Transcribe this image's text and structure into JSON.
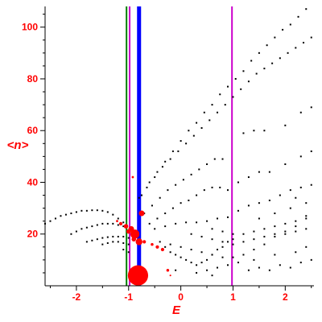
{
  "chart_data": {
    "type": "scatter",
    "title": "",
    "xlabel": "E",
    "ylabel": "<n>",
    "xlim": [
      -2.6,
      2.55
    ],
    "ylim": [
      0,
      108
    ],
    "x_ticks": [
      -2,
      -1,
      0,
      1,
      2
    ],
    "y_ticks": [
      20,
      40,
      60,
      80,
      100
    ],
    "grid": false,
    "vertical_lines": [
      {
        "x": -1.04,
        "color": "#008000"
      },
      {
        "x": -0.98,
        "color": "#cc00cc"
      },
      {
        "x": -0.8,
        "color": "#0000ff"
      },
      {
        "x": 0.98,
        "color": "#cc00cc"
      }
    ],
    "black_series_note": "",
    "black_points": [
      [
        -2.6,
        24
      ],
      [
        -2.5,
        25
      ],
      [
        -2.4,
        26
      ],
      [
        -2.3,
        27
      ],
      [
        -2.2,
        27.5
      ],
      [
        -2.1,
        28
      ],
      [
        -2.0,
        28.5
      ],
      [
        -1.9,
        29
      ],
      [
        -1.8,
        29
      ],
      [
        -1.7,
        29.2
      ],
      [
        -1.6,
        29.2
      ],
      [
        -1.5,
        29
      ],
      [
        -1.4,
        28.5
      ],
      [
        -1.3,
        27.5
      ],
      [
        -1.2,
        26
      ],
      [
        -1.1,
        24.5
      ],
      [
        -2.1,
        20
      ],
      [
        -2.0,
        21
      ],
      [
        -1.9,
        22
      ],
      [
        -1.8,
        22.5
      ],
      [
        -1.7,
        23
      ],
      [
        -1.6,
        23.5
      ],
      [
        -1.5,
        24
      ],
      [
        -1.4,
        24
      ],
      [
        -1.3,
        24
      ],
      [
        -1.2,
        23.5
      ],
      [
        -1.1,
        23
      ],
      [
        -1.8,
        17
      ],
      [
        -1.7,
        17.5
      ],
      [
        -1.6,
        18
      ],
      [
        -1.5,
        18.5
      ],
      [
        -1.4,
        18.8
      ],
      [
        -1.3,
        19
      ],
      [
        -1.2,
        19
      ],
      [
        -1.1,
        19
      ],
      [
        -1.0,
        18.5
      ],
      [
        -1.5,
        16
      ],
      [
        -1.4,
        16.5
      ],
      [
        -1.3,
        17
      ],
      [
        -1.2,
        17
      ],
      [
        -1.1,
        16.5
      ],
      [
        -1.0,
        16
      ],
      [
        -1.1,
        14
      ],
      [
        -1.0,
        13
      ],
      [
        -0.75,
        35
      ],
      [
        -0.6,
        40
      ],
      [
        -0.45,
        44
      ],
      [
        -0.3,
        48
      ],
      [
        -0.15,
        52
      ],
      [
        0.0,
        56
      ],
      [
        0.15,
        60
      ],
      [
        0.3,
        63
      ],
      [
        0.45,
        67
      ],
      [
        0.6,
        70
      ],
      [
        0.75,
        74
      ],
      [
        0.9,
        77
      ],
      [
        1.05,
        80
      ],
      [
        1.2,
        83
      ],
      [
        1.35,
        87
      ],
      [
        1.5,
        90
      ],
      [
        1.65,
        93
      ],
      [
        1.8,
        96
      ],
      [
        1.95,
        99
      ],
      [
        2.1,
        101
      ],
      [
        2.25,
        104
      ],
      [
        2.4,
        107
      ],
      [
        -0.8,
        34
      ],
      [
        -0.65,
        38
      ],
      [
        -0.5,
        42
      ],
      [
        -0.35,
        46
      ],
      [
        -0.2,
        49
      ],
      [
        -0.05,
        52
      ],
      [
        0.1,
        55
      ],
      [
        0.25,
        58
      ],
      [
        0.4,
        61
      ],
      [
        0.55,
        64
      ],
      [
        0.7,
        67
      ],
      [
        0.85,
        70
      ],
      [
        1.0,
        73
      ],
      [
        1.15,
        76
      ],
      [
        1.3,
        79
      ],
      [
        1.45,
        82
      ],
      [
        1.6,
        84
      ],
      [
        1.75,
        86
      ],
      [
        1.9,
        88
      ],
      [
        2.05,
        90
      ],
      [
        2.2,
        92
      ],
      [
        2.35,
        94
      ],
      [
        2.5,
        96
      ],
      [
        -0.7,
        28
      ],
      [
        -0.55,
        31
      ],
      [
        -0.4,
        34
      ],
      [
        -0.25,
        37
      ],
      [
        -0.1,
        39
      ],
      [
        0.05,
        41
      ],
      [
        0.2,
        43
      ],
      [
        0.35,
        45
      ],
      [
        0.5,
        47
      ],
      [
        0.65,
        49
      ],
      [
        0.8,
        49
      ],
      [
        1.2,
        59
      ],
      [
        1.4,
        60
      ],
      [
        1.6,
        60
      ],
      [
        2.0,
        62
      ],
      [
        2.3,
        67
      ],
      [
        2.5,
        69
      ],
      [
        -0.6,
        24
      ],
      [
        -0.45,
        26
      ],
      [
        -0.3,
        28
      ],
      [
        -0.15,
        30
      ],
      [
        0.0,
        32
      ],
      [
        0.15,
        33
      ],
      [
        0.3,
        35
      ],
      [
        0.45,
        37
      ],
      [
        0.6,
        38
      ],
      [
        0.75,
        38
      ],
      [
        0.9,
        37
      ],
      [
        1.1,
        40
      ],
      [
        1.3,
        42
      ],
      [
        1.5,
        44
      ],
      [
        1.7,
        44
      ],
      [
        2.0,
        47
      ],
      [
        2.3,
        50
      ],
      [
        2.5,
        52
      ],
      [
        -0.5,
        22
      ],
      [
        -0.3,
        23
      ],
      [
        -0.1,
        24
      ],
      [
        0.1,
        24.5
      ],
      [
        0.3,
        24.5
      ],
      [
        0.5,
        25
      ],
      [
        0.7,
        26
      ],
      [
        0.9,
        26.5
      ],
      [
        1.1,
        29
      ],
      [
        1.3,
        31
      ],
      [
        1.5,
        32
      ],
      [
        1.7,
        33
      ],
      [
        1.9,
        35
      ],
      [
        2.1,
        37
      ],
      [
        2.3,
        38
      ],
      [
        2.5,
        39
      ],
      [
        -0.3,
        15
      ],
      [
        -0.2,
        13
      ],
      [
        -0.1,
        12
      ],
      [
        0.0,
        11
      ],
      [
        0.1,
        10
      ],
      [
        0.2,
        9
      ],
      [
        0.3,
        8
      ],
      [
        0.4,
        9
      ],
      [
        0.5,
        10
      ],
      [
        0.6,
        12
      ],
      [
        0.7,
        14
      ],
      [
        0.8,
        15
      ],
      [
        0.9,
        17
      ],
      [
        1.0,
        18
      ],
      [
        -0.4,
        17
      ],
      [
        -0.2,
        16
      ],
      [
        0.0,
        15
      ],
      [
        0.2,
        14
      ],
      [
        0.4,
        13
      ],
      [
        0.6,
        12
      ],
      [
        0.8,
        11
      ],
      [
        1.0,
        11
      ],
      [
        1.2,
        12
      ],
      [
        1.4,
        14
      ],
      [
        1.6,
        16
      ],
      [
        1.8,
        19
      ],
      [
        2.0,
        21
      ],
      [
        2.2,
        23
      ],
      [
        2.4,
        26
      ],
      [
        0.2,
        20
      ],
      [
        0.4,
        19
      ],
      [
        0.6,
        18
      ],
      [
        0.8,
        17
      ],
      [
        1.0,
        16
      ],
      [
        1.2,
        17
      ],
      [
        1.4,
        18
      ],
      [
        1.6,
        19
      ],
      [
        1.8,
        20
      ],
      [
        2.0,
        20
      ],
      [
        2.2,
        21
      ],
      [
        2.4,
        22
      ],
      [
        0.6,
        22
      ],
      [
        0.8,
        21
      ],
      [
        1.0,
        20
      ],
      [
        1.2,
        20
      ],
      [
        1.4,
        21
      ],
      [
        1.6,
        22
      ],
      [
        1.8,
        23
      ],
      [
        2.0,
        24
      ],
      [
        2.2,
        25
      ],
      [
        2.4,
        27
      ],
      [
        0.5,
        6
      ],
      [
        0.7,
        7
      ],
      [
        0.9,
        8
      ],
      [
        1.1,
        9
      ],
      [
        1.3,
        6
      ],
      [
        1.5,
        7
      ],
      [
        1.7,
        6
      ],
      [
        1.9,
        8
      ],
      [
        2.1,
        7
      ],
      [
        2.3,
        9
      ],
      [
        2.5,
        10
      ],
      [
        -0.1,
        6
      ],
      [
        0.3,
        5
      ],
      [
        0.6,
        4
      ],
      [
        1.4,
        10
      ],
      [
        1.8,
        12
      ],
      [
        2.2,
        13
      ],
      [
        2.4,
        15
      ],
      [
        1.8,
        28
      ],
      [
        2.1,
        30
      ],
      [
        2.4,
        32
      ],
      [
        1.5,
        26
      ],
      [
        2.2,
        34
      ]
    ],
    "red_points": [
      {
        "x": -0.82,
        "y": 4,
        "size": 18
      },
      {
        "x": -0.88,
        "y": 20,
        "size": 8
      },
      {
        "x": -0.8,
        "y": 17,
        "size": 6
      },
      {
        "x": -0.75,
        "y": 28,
        "size": 5
      },
      {
        "x": -0.95,
        "y": 22,
        "size": 5
      },
      {
        "x": -1.05,
        "y": 23,
        "size": 4
      },
      {
        "x": -1.15,
        "y": 24,
        "size": 3
      },
      {
        "x": -1.22,
        "y": 25,
        "size": 2
      },
      {
        "x": -0.45,
        "y": 15,
        "size": 3
      },
      {
        "x": -0.35,
        "y": 14,
        "size": 3
      },
      {
        "x": -0.55,
        "y": 16,
        "size": 2.5
      },
      {
        "x": -0.25,
        "y": 6,
        "size": 2.5
      },
      {
        "x": -0.92,
        "y": 42,
        "size": 2
      },
      {
        "x": -1.0,
        "y": 21,
        "size": 4
      },
      {
        "x": -0.9,
        "y": 18,
        "size": 4
      },
      {
        "x": -0.7,
        "y": 17,
        "size": 3
      },
      {
        "x": -0.2,
        "y": 4,
        "size": 1.5
      }
    ]
  }
}
